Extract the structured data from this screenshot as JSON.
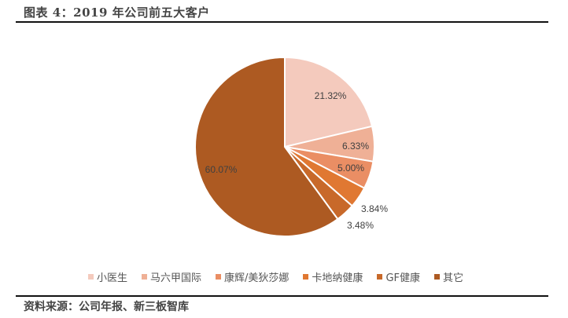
{
  "header": {
    "title": "图表 4：2019 年公司前五大客户"
  },
  "footer": {
    "source": "资料来源：公司年报、新三板智库"
  },
  "chart_data": {
    "type": "pie",
    "title": "2019 年公司前五大客户",
    "categories": [
      "小医生",
      "马六甲国际",
      "康辉/美狄莎娜",
      "卡地纳健康",
      "GF健康",
      "其它"
    ],
    "values": [
      21.32,
      6.33,
      5.0,
      3.84,
      3.48,
      60.07
    ],
    "labels": [
      "21.32%",
      "6.33%",
      "5.00%",
      "3.84%",
      "3.48%",
      "60.07%"
    ],
    "colors": [
      "#F4CABD",
      "#EFB096",
      "#EA8E64",
      "#E07832",
      "#C8692A",
      "#AD5A22"
    ],
    "legend_position": "bottom",
    "start_angle": "12 o'clock, clockwise"
  }
}
